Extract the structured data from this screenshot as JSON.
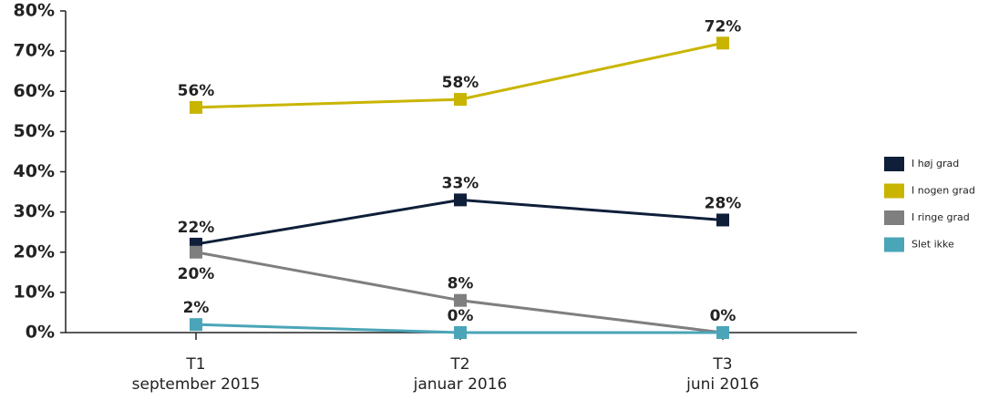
{
  "chart_data": {
    "type": "line",
    "categories": [
      "T1\nseptember 2015",
      "T2\njanuar 2016",
      "T3\njuni 2016"
    ],
    "series": [
      {
        "name": "I høj grad",
        "color": "#0f1f3a",
        "values": [
          22,
          33,
          28
        ],
        "value_labels": [
          "22%",
          "33%",
          "28%"
        ]
      },
      {
        "name": "I nogen grad",
        "color": "#c9b500",
        "values": [
          56,
          58,
          72
        ],
        "value_labels": [
          "56%",
          "58%",
          "72%"
        ]
      },
      {
        "name": "I ringe grad",
        "color": "#7f7f7f",
        "values": [
          20,
          8,
          0
        ],
        "value_labels": [
          "20%",
          "8%",
          "0%"
        ]
      },
      {
        "name": "Slet ikke",
        "color": "#4aa5b8",
        "values": [
          2,
          0,
          0
        ],
        "value_labels": [
          "2%",
          "0%",
          null
        ]
      }
    ],
    "ylim": [
      0,
      80
    ],
    "yticks": [
      {
        "value": 0,
        "label": "0%"
      },
      {
        "value": 10,
        "label": "10%"
      },
      {
        "value": 20,
        "label": "20%"
      },
      {
        "value": 30,
        "label": "30%"
      },
      {
        "value": 40,
        "label": "40%"
      },
      {
        "value": 50,
        "label": "50%"
      },
      {
        "value": 60,
        "label": "60%"
      },
      {
        "value": 70,
        "label": "70%"
      },
      {
        "value": 80,
        "label": "80%"
      }
    ],
    "legend": "right"
  }
}
